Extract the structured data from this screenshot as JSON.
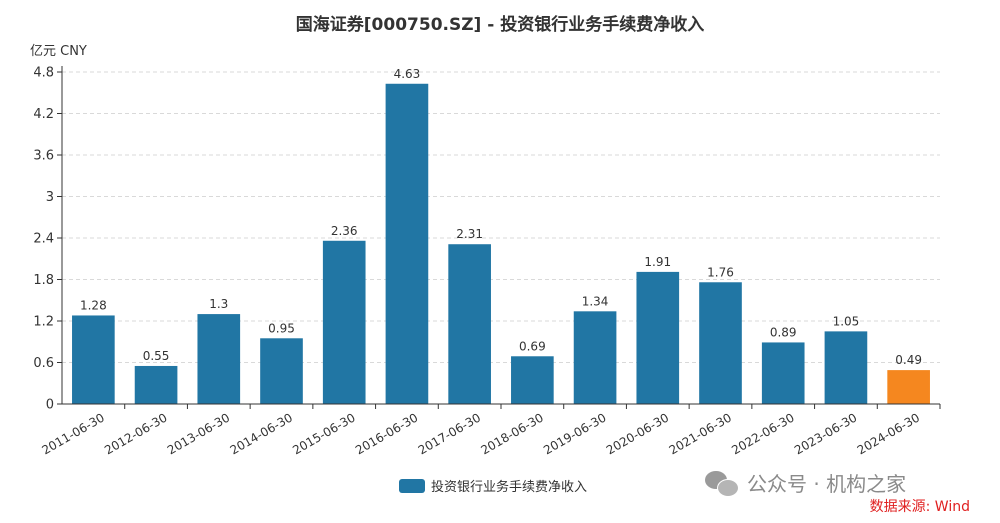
{
  "chart_data": {
    "type": "bar",
    "title": "国海证券[000750.SZ] - 投资银行业务手续费净收入",
    "ylabel": "亿元  CNY",
    "categories": [
      "2011-06-30",
      "2012-06-30",
      "2013-06-30",
      "2014-06-30",
      "2015-06-30",
      "2016-06-30",
      "2017-06-30",
      "2018-06-30",
      "2019-06-30",
      "2020-06-30",
      "2021-06-30",
      "2022-06-30",
      "2023-06-30",
      "2024-06-30"
    ],
    "values": [
      1.28,
      0.55,
      1.3,
      0.95,
      2.36,
      4.63,
      2.31,
      0.69,
      1.34,
      1.91,
      1.76,
      0.89,
      1.05,
      0.49
    ],
    "value_labels": [
      "1.28",
      "0.55",
      "1.3",
      "0.95",
      "2.36",
      "4.63",
      "2.31",
      "0.69",
      "1.34",
      "1.91",
      "1.76",
      "0.89",
      "1.05",
      "0.49"
    ],
    "yticks": [
      "0",
      "0.6",
      "1.2",
      "1.8",
      "2.4",
      "3",
      "3.6",
      "4.2",
      "4.8"
    ],
    "ylim": [
      0,
      4.8
    ],
    "grid": true,
    "legend": "bottom-center",
    "series": [
      {
        "name": "投资银行业务手续费净收入",
        "color": "#2176a4",
        "highlight_color": "#f5871f"
      }
    ]
  },
  "watermark": {
    "icon": "wechat-icon",
    "text": "公众号 · 机构之家"
  },
  "source": "数据来源: Wind"
}
